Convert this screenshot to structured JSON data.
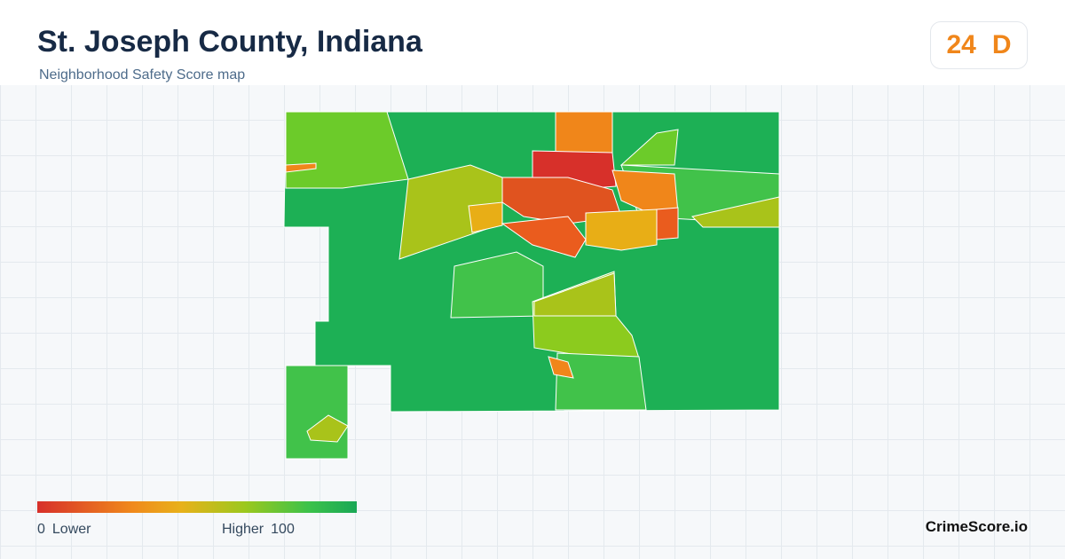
{
  "header": {
    "title": "St. Joseph County, Indiana",
    "subtitle": "Neighborhood Safety Score map"
  },
  "score": {
    "value": 24,
    "grade": "D"
  },
  "legend": {
    "min": 0,
    "min_label": "Lower",
    "max_label": "Higher",
    "max": 100
  },
  "brand": "CrimeScore.io"
}
